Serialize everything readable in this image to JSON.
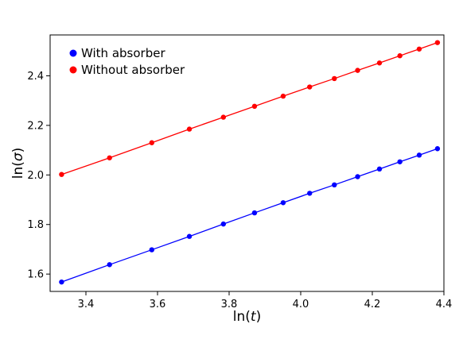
{
  "chart_data": {
    "type": "line",
    "title": "",
    "xlabel": "ln(t)",
    "ylabel": "ln(σ)",
    "xlim": [
      3.3,
      4.4
    ],
    "ylim": [
      1.53,
      2.565
    ],
    "xticks": [
      "3.4",
      "3.6",
      "3.8",
      "4.0",
      "4.2",
      "4.4"
    ],
    "yticks": [
      "1.6",
      "1.8",
      "2.0",
      "2.2",
      "2.4"
    ],
    "grid": false,
    "legend": "top-left",
    "series": [
      {
        "name": "With absorber",
        "color": "#0000ff",
        "x": [
          3.332,
          3.466,
          3.584,
          3.689,
          3.784,
          3.871,
          3.951,
          4.025,
          4.094,
          4.159,
          4.22,
          4.277,
          4.331,
          4.382
        ],
        "y": [
          1.568,
          1.638,
          1.698,
          1.752,
          1.802,
          1.847,
          1.888,
          1.926,
          1.96,
          1.993,
          2.024,
          2.053,
          2.08,
          2.106
        ]
      },
      {
        "name": "Without absorber",
        "color": "#ff0000",
        "x": [
          3.332,
          3.466,
          3.584,
          3.689,
          3.784,
          3.871,
          3.951,
          4.025,
          4.094,
          4.159,
          4.22,
          4.277,
          4.331,
          4.382
        ],
        "y": [
          2.002,
          2.069,
          2.13,
          2.185,
          2.233,
          2.277,
          2.318,
          2.355,
          2.389,
          2.422,
          2.452,
          2.481,
          2.508,
          2.534
        ]
      }
    ]
  }
}
